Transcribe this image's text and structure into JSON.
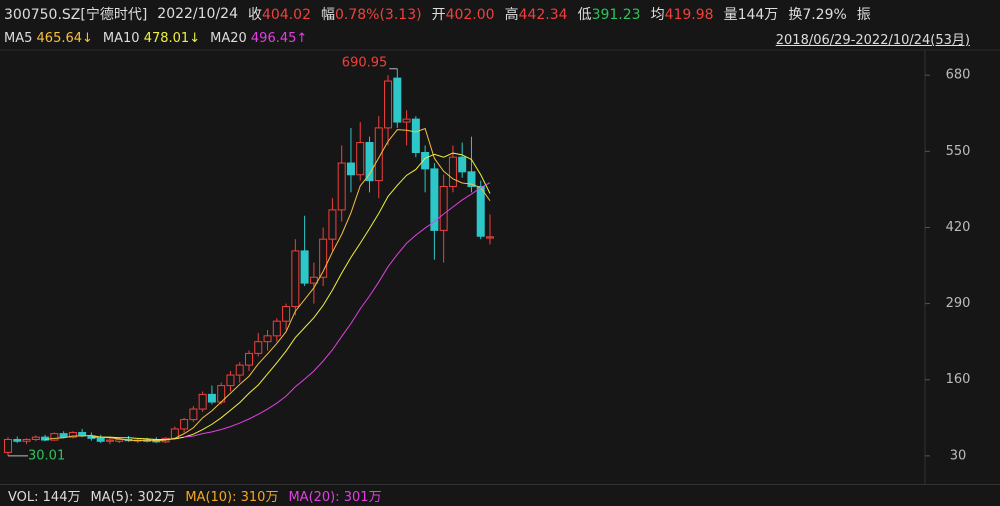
{
  "header": {
    "code": "300750.SZ[宁德时代]",
    "date": "2022/10/24",
    "fields": [
      {
        "label": "收",
        "value": "404.02",
        "color": "#f0403c"
      },
      {
        "label": "幅",
        "value": "0.78%(3.13)",
        "color": "#f0403c"
      },
      {
        "label": "开",
        "value": "402.00",
        "color": "#f0403c"
      },
      {
        "label": "高",
        "value": "442.34",
        "color": "#f0403c"
      },
      {
        "label": "低",
        "value": "391.23",
        "color": "#2fc25b"
      },
      {
        "label": "均",
        "value": "419.98",
        "color": "#f0403c"
      },
      {
        "label": "量",
        "value": "144万",
        "color": "#dddddd"
      },
      {
        "label": "换",
        "value": "7.29%",
        "color": "#dddddd"
      },
      {
        "label": "振",
        "value": "",
        "color": "#dddddd"
      }
    ]
  },
  "range": "2018/06/29-2022/10/24(53月)",
  "volume": [
    {
      "label": "VOL: 144万",
      "color": "#dddddd"
    },
    {
      "label": "MA(5): 302万",
      "color": "#dddddd"
    },
    {
      "label": "MA(10): 310万",
      "color": "#f5a623"
    },
    {
      "label": "MA(20): 301万",
      "color": "#e040e0"
    }
  ],
  "chart_data": {
    "type": "candlestick",
    "open": [
      36,
      58,
      55,
      58,
      62,
      57,
      68,
      62,
      70,
      64,
      60,
      55,
      55,
      58,
      56,
      57,
      57,
      54,
      60,
      76,
      92,
      110,
      135,
      122,
      150,
      168,
      185,
      205,
      225,
      235,
      260,
      285,
      380,
      325,
      335,
      400,
      450,
      530,
      510,
      565,
      500,
      590,
      675,
      600,
      605,
      548,
      520,
      415,
      490,
      540,
      515,
      490,
      402
    ],
    "high": [
      62,
      63,
      60,
      65,
      66,
      70,
      72,
      72,
      76,
      70,
      66,
      60,
      62,
      64,
      60,
      61,
      62,
      62,
      80,
      95,
      115,
      140,
      150,
      155,
      175,
      190,
      210,
      240,
      245,
      265,
      290,
      400,
      440,
      360,
      420,
      470,
      560,
      590,
      600,
      575,
      610,
      680,
      690.95,
      620,
      610,
      560,
      530,
      510,
      560,
      565,
      575,
      500,
      442.34
    ],
    "low": [
      30.01,
      52,
      50,
      55,
      55,
      56,
      60,
      60,
      62,
      56,
      52,
      50,
      52,
      54,
      52,
      53,
      52,
      52,
      58,
      70,
      88,
      105,
      118,
      118,
      140,
      155,
      175,
      200,
      210,
      225,
      245,
      270,
      320,
      290,
      320,
      380,
      430,
      480,
      500,
      480,
      470,
      560,
      590,
      560,
      540,
      480,
      365,
      360,
      480,
      505,
      480,
      400,
      391.23
    ],
    "close": [
      58,
      55,
      58,
      62,
      57,
      68,
      62,
      70,
      64,
      60,
      55,
      57,
      58,
      56,
      57,
      55,
      54,
      60,
      76,
      92,
      110,
      135,
      122,
      150,
      168,
      185,
      205,
      225,
      235,
      260,
      285,
      380,
      325,
      335,
      400,
      450,
      530,
      510,
      565,
      500,
      590,
      670,
      600,
      605,
      548,
      520,
      415,
      490,
      540,
      515,
      490,
      405,
      404.02
    ],
    "up_color": "#f0403c",
    "down_color": "#2ec7c9",
    "series": [
      {
        "name": "MA5",
        "color": "#f5c040",
        "last_label": "465.64↓",
        "values": [
          null,
          null,
          null,
          null,
          58,
          60,
          61,
          64,
          64,
          65,
          62,
          61,
          59,
          57,
          56,
          57,
          56,
          57,
          60,
          68,
          78,
          95,
          107,
          122,
          137,
          152,
          166,
          187,
          204,
          222,
          242,
          277,
          297,
          317,
          345,
          378,
          408,
          445,
          491,
          511,
          539,
          567,
          587,
          586,
          583,
          589,
          538,
          516,
          503,
          496,
          494,
          488,
          465.64
        ]
      },
      {
        "name": "MA10",
        "color": "#f0f040",
        "last_label": "478.01↓",
        "values": [
          null,
          null,
          null,
          null,
          null,
          null,
          null,
          null,
          null,
          62,
          62,
          62,
          61,
          61,
          60,
          59,
          58,
          58,
          59,
          62,
          67,
          75,
          84,
          95,
          108,
          121,
          137,
          151,
          170,
          189,
          209,
          232,
          249,
          266,
          287,
          313,
          342,
          369,
          393,
          418,
          444,
          473,
          492,
          509,
          519,
          538,
          545,
          540,
          547,
          544,
          536,
          510,
          478.01
        ]
      },
      {
        "name": "MA20",
        "color": "#e040e0",
        "last_label": "496.45↑",
        "values": [
          null,
          null,
          null,
          null,
          null,
          null,
          null,
          null,
          null,
          null,
          null,
          null,
          null,
          null,
          null,
          null,
          null,
          null,
          null,
          62,
          64,
          68,
          71,
          75,
          80,
          86,
          93,
          101,
          110,
          120,
          132,
          148,
          161,
          175,
          192,
          211,
          234,
          256,
          281,
          303,
          327,
          353,
          374,
          393,
          407,
          419,
          430,
          443,
          455,
          467,
          477,
          488,
          496.45
        ]
      }
    ],
    "annotations": [
      {
        "text": "690.95",
        "index": 42,
        "value": 690.95
      },
      {
        "text": "30.01",
        "index": 0,
        "value": 30.01
      }
    ],
    "ylim": [
      -18,
      723
    ],
    "yticks": [
      30,
      160,
      290,
      420,
      550,
      680
    ]
  }
}
